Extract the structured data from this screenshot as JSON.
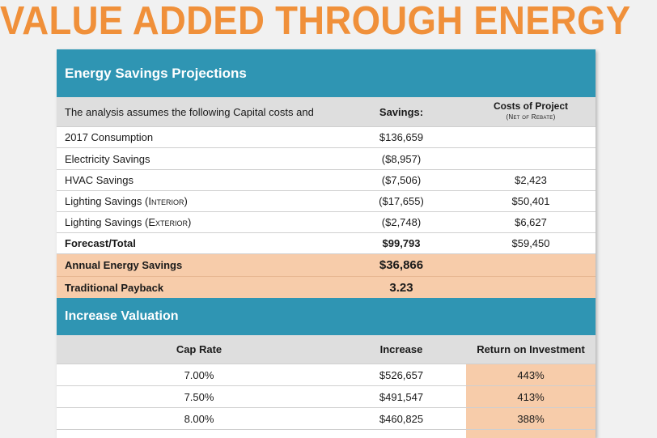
{
  "page_title": "VALUE ADDED THROUGH ENERGY",
  "energy": {
    "header": "Energy Savings Projections",
    "intro_text": "The analysis assumes the following Capital costs and",
    "savings_header": "Savings:",
    "costs_header": "Costs of Project",
    "costs_subheader": "Net of Rebate",
    "rows": [
      {
        "label": "2017 Consumption",
        "note": "",
        "savings": "$136,659",
        "cost": ""
      },
      {
        "label": "Electricity Savings",
        "note": "",
        "savings": "($8,957)",
        "cost": ""
      },
      {
        "label": "HVAC Savings",
        "note": "",
        "savings": "($7,506)",
        "cost": "$2,423"
      },
      {
        "label": "Lighting Savings",
        "note": "(Interior)",
        "savings": "($17,655)",
        "cost": "$50,401"
      },
      {
        "label": "Lighting Savings",
        "note": "(Exterior)",
        "savings": "($2,748)",
        "cost": "$6,627"
      }
    ],
    "total": {
      "label": "Forecast/Total",
      "savings": "$99,793",
      "cost": "$59,450"
    },
    "annual": {
      "label": "Annual Energy Savings",
      "value": "$36,866"
    },
    "payback": {
      "label": "Traditional Payback",
      "value": "3.23"
    }
  },
  "valuation": {
    "header": "Increase Valuation",
    "col_cap_rate": "Cap Rate",
    "col_increase": "Increase",
    "col_roi": "Return on Investment",
    "rows": [
      {
        "cap_rate": "7.00%",
        "increase": "$526,657",
        "roi": "443%"
      },
      {
        "cap_rate": "7.50%",
        "increase": "$491,547",
        "roi": "413%"
      },
      {
        "cap_rate": "8.00%",
        "increase": "$460,825",
        "roi": "388%"
      }
    ]
  }
}
